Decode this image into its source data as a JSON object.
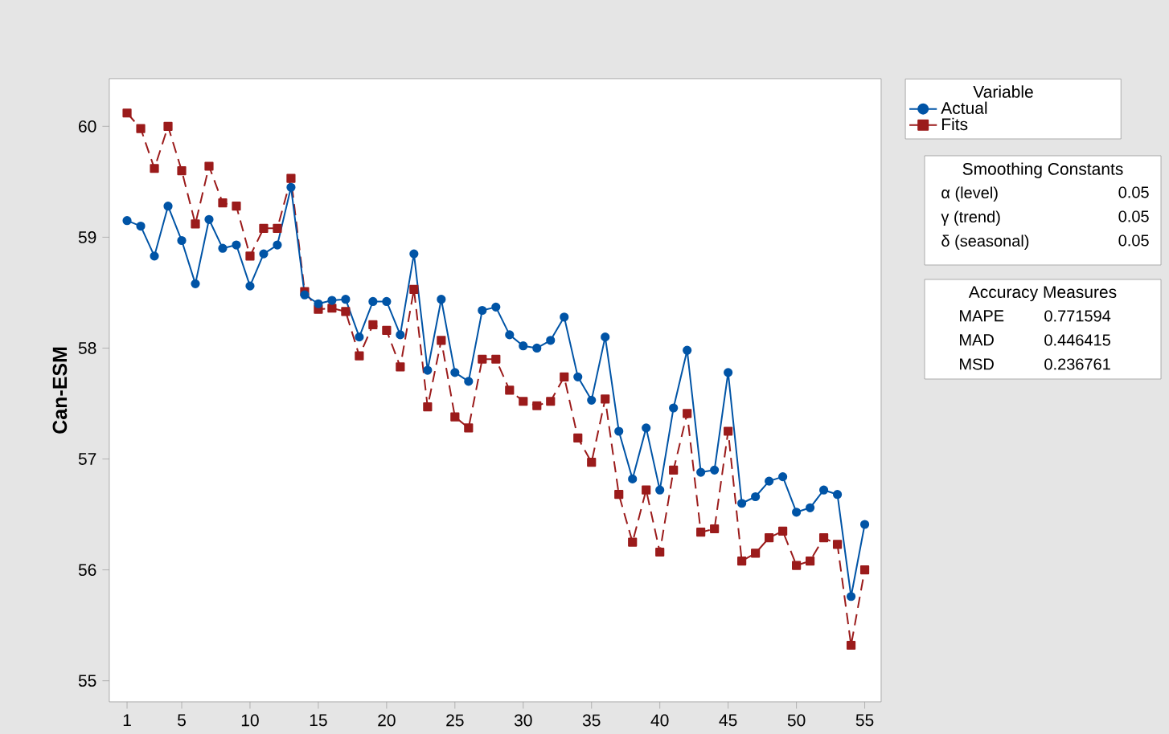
{
  "chart_data": {
    "type": "line",
    "ylabel": "Can-ESM",
    "legend_title": "Variable",
    "legend": "right",
    "x": [
      1,
      2,
      3,
      4,
      5,
      6,
      7,
      8,
      9,
      10,
      11,
      12,
      13,
      14,
      15,
      16,
      17,
      18,
      19,
      20,
      21,
      22,
      23,
      24,
      25,
      26,
      27,
      28,
      29,
      30,
      31,
      32,
      33,
      34,
      35,
      36,
      37,
      38,
      39,
      40,
      41,
      42,
      43,
      44,
      45,
      46,
      47,
      48,
      49,
      50,
      51,
      52,
      53,
      54,
      55
    ],
    "series": [
      {
        "name": "Actual",
        "color": "#0054a6",
        "marker": "circle",
        "line_style": "solid",
        "values": [
          59.15,
          59.1,
          58.83,
          59.28,
          58.97,
          58.58,
          59.16,
          58.9,
          58.93,
          58.56,
          58.85,
          58.93,
          59.45,
          58.48,
          58.4,
          58.43,
          58.44,
          58.1,
          58.42,
          58.42,
          58.12,
          58.85,
          57.8,
          58.44,
          57.78,
          57.7,
          58.34,
          58.37,
          58.12,
          58.02,
          58.0,
          58.07,
          58.28,
          57.74,
          57.53,
          58.1,
          57.25,
          56.82,
          57.28,
          56.72,
          57.46,
          57.98,
          56.88,
          56.9,
          57.78,
          56.6,
          56.66,
          56.8,
          56.84,
          56.52,
          56.56,
          56.72,
          56.68,
          55.76,
          56.41
        ]
      },
      {
        "name": "Fits",
        "color": "#9b1b1b",
        "marker": "square",
        "line_style": "dashed",
        "values": [
          60.12,
          59.98,
          59.62,
          60.0,
          59.6,
          59.12,
          59.64,
          59.31,
          59.28,
          58.83,
          59.08,
          59.08,
          59.53,
          58.51,
          58.35,
          58.36,
          58.33,
          57.93,
          58.21,
          58.16,
          57.83,
          58.53,
          57.47,
          58.07,
          57.38,
          57.28,
          57.9,
          57.9,
          57.62,
          57.52,
          57.48,
          57.52,
          57.74,
          57.19,
          56.97,
          57.54,
          56.68,
          56.25,
          56.72,
          56.16,
          56.9,
          57.41,
          56.34,
          56.37,
          57.25,
          56.08,
          56.15,
          56.29,
          56.35,
          56.04,
          56.08,
          56.29,
          56.23,
          55.32,
          56.0
        ]
      }
    ],
    "xlim": [
      -0.3,
      56.2
    ],
    "ylim": [
      54.81,
      60.43
    ],
    "xticks": [
      1,
      5,
      10,
      15,
      20,
      25,
      30,
      35,
      40,
      45,
      50,
      55
    ],
    "yticks": [
      55,
      56,
      57,
      58,
      59,
      60
    ],
    "annotations": [
      "Smoothing Constants",
      "α (level)",
      "0.05",
      "γ (trend)",
      "0.05",
      "δ (seasonal)",
      "0.05",
      "Accuracy Measures",
      "MAPE",
      "0.771594",
      "MAD",
      "0.446415",
      "MSD",
      "0.236761"
    ]
  }
}
